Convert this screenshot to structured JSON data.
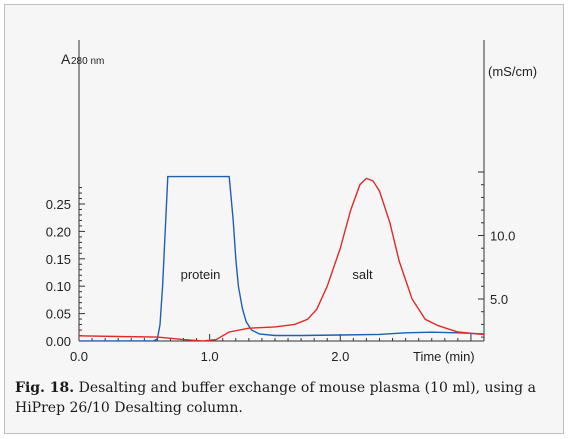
{
  "chart_data": {
    "type": "line",
    "y_left_label_main": "A",
    "y_left_label_sub": "280 nm",
    "y_right_label": "(mS/cm)",
    "x_label": "Time (min)",
    "x_ticks": [
      "0.0",
      "1.0",
      "2.0"
    ],
    "y_left_ticks": [
      "0.00",
      "0.05",
      "0.10",
      "0.15",
      "0.20",
      "0.25"
    ],
    "y_right_ticks": [
      "5.0",
      "10.0"
    ],
    "xlim": [
      0,
      3.1
    ],
    "ylim_left": [
      0,
      0.29
    ],
    "ylim_right": [
      1.5,
      15.5
    ],
    "annotations": [
      {
        "text": "protein",
        "x": 0.93,
        "y": 0.12
      },
      {
        "text": "salt",
        "x": 2.17,
        "y": 0.12
      }
    ],
    "series": [
      {
        "color": "#1f5fb0",
        "axis": "left",
        "x": [
          0,
          0.3,
          0.5,
          0.57,
          0.6,
          0.62,
          0.64,
          0.66,
          0.68,
          1.15,
          1.18,
          1.2,
          1.22,
          1.25,
          1.28,
          1.32,
          1.38,
          1.5,
          1.7,
          2.0,
          2.3,
          2.5,
          2.7,
          2.9,
          3.1
        ],
        "y": [
          0.0,
          0.0,
          0.0,
          0.0,
          0.004,
          0.03,
          0.1,
          0.2,
          0.3,
          0.3,
          0.22,
          0.15,
          0.1,
          0.06,
          0.035,
          0.02,
          0.013,
          0.01,
          0.01,
          0.011,
          0.012,
          0.015,
          0.016,
          0.015,
          0.013
        ]
      },
      {
        "color": "#e02a2a",
        "axis": "right",
        "x": [
          0,
          0.3,
          0.6,
          0.8,
          0.95,
          1.05,
          1.15,
          1.3,
          1.5,
          1.65,
          1.75,
          1.82,
          1.9,
          2.0,
          2.08,
          2.15,
          2.2,
          2.25,
          2.3,
          2.38,
          2.45,
          2.55,
          2.65,
          2.75,
          2.9,
          3.0,
          3.1
        ],
        "y": [
          2.1,
          2.05,
          2.0,
          1.8,
          1.7,
          1.8,
          2.4,
          2.7,
          2.8,
          3.0,
          3.4,
          4.2,
          6.0,
          9.0,
          12.0,
          14.0,
          14.5,
          14.3,
          13.5,
          11.0,
          8.0,
          5.0,
          3.4,
          2.9,
          2.4,
          2.3,
          2.2
        ]
      }
    ]
  },
  "caption": {
    "lead": "Fig. 18.",
    "text": " Desalting and buffer exchange of mouse plasma (10 ml), using a HiPrep 26/10 Desalting column."
  }
}
